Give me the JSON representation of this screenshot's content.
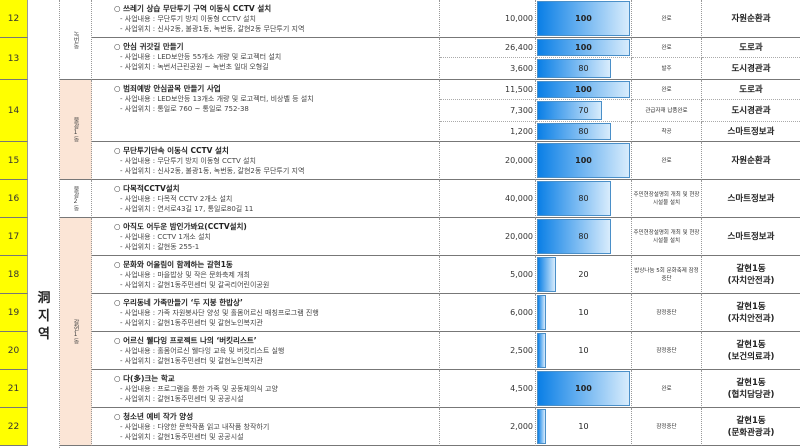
{
  "region_label": "洞 지역",
  "dongs": [
    {
      "label": "녹번동",
      "peach": false,
      "rows": [
        12,
        13
      ]
    },
    {
      "label": "불광1동",
      "peach": true,
      "rows": [
        14,
        15
      ]
    },
    {
      "label": "불광2동",
      "peach": false,
      "rows": [
        16
      ]
    },
    {
      "label": "갈현1동",
      "peach": true,
      "rows": [
        17,
        22
      ]
    }
  ],
  "rows": [
    {
      "num": "12",
      "title": "○ 쓰레기 상습 무단투기 구역 이동식 CCTV 설치",
      "content": "- 사업내용 : 무단투기 방지 이동형 CCTV 설치",
      "location": "- 사업위치 : 신사2동, 불광1동, 녹번동, 갈현2동 무단투기 지역",
      "dept": "자원순환과",
      "subs": [
        {
          "amount": "10,000",
          "progress": 100,
          "status": "완료"
        }
      ]
    },
    {
      "num": "13",
      "title": "○ 안심 귀갓길 만들기",
      "content": "- 사업내용 : LED보안등 55개소 개량 및 로고젝터 설치",
      "location": "- 사업위치 : 녹번서근린공원 ~ 녹번초 일대 오형길",
      "dept": "",
      "subs": [
        {
          "amount": "26,400",
          "progress": 100,
          "status": "완료",
          "dept": "도로과"
        },
        {
          "amount": "3,600",
          "progress": 80,
          "status": "발주",
          "dept": "도시경관과"
        }
      ]
    },
    {
      "num": "14",
      "title": "○ 범죄예방 안심골목 만들기 사업",
      "content": "- 사업내용 : LED보안등 13개소 개량 및 로고젝터, 비상벨 등 설치",
      "location": "- 사업위치 : 통일로 760 ~ 통일로 752-38",
      "dept": "",
      "subs": [
        {
          "amount": "11,500",
          "progress": 100,
          "status": "완료",
          "dept": "도로과"
        },
        {
          "amount": "7,300",
          "progress": 70,
          "status": "관급자재 납품완료",
          "dept": "도시경관과"
        },
        {
          "amount": "1,200",
          "progress": 80,
          "status": "착공",
          "dept": "스마트정보과"
        }
      ]
    },
    {
      "num": "15",
      "title": "○ 무단투기단속 이동식 CCTV 설치",
      "content": "- 사업내용 : 무단투기 방지 이동형 CCTV 설치",
      "location": "- 사업위치 : 신사2동, 불광1동, 녹번동, 갈현2동 무단투기 지역",
      "dept": "자원순환과",
      "subs": [
        {
          "amount": "20,000",
          "progress": 100,
          "status": "완료"
        }
      ]
    },
    {
      "num": "16",
      "title": "○ 다목적CCTV설치",
      "content": "- 사업내용 : 다목적 CCTV 2개소 설치",
      "location": "- 사업위치 : 연서로43길 17, 통일로80길 11",
      "dept": "스마트정보과",
      "subs": [
        {
          "amount": "40,000",
          "progress": 80,
          "status": "주민현장설명회 개최 및 현장시설물 설치"
        }
      ]
    },
    {
      "num": "17",
      "title": "○ 아직도 어두운 밤인가봐요(CCTV설치)",
      "content": "- 사업내용 : CCTV 1개소 설치",
      "location": "- 사업위치 : 갈현동 255-1",
      "dept": "스마트정보과",
      "subs": [
        {
          "amount": "20,000",
          "progress": 80,
          "status": "주민현장설명회 개최 및 현장시설물 설치"
        }
      ]
    },
    {
      "num": "18",
      "title": "○ 문화와 어울림이 함께하는 갈현1동",
      "content": "- 사업내용 : 마을밥상 및 작은 문화축제 개최",
      "location": "- 사업위치 : 갈현1동주민센터 및 갈곡리어린이공원",
      "dept": "갈현1동\n(자치안전과)",
      "subs": [
        {
          "amount": "5,000",
          "progress": 20,
          "status": "밥상나눔 5회 문화축제 잠정중단"
        }
      ]
    },
    {
      "num": "19",
      "title": "○ 우리동네 가족만들기 ‘두 지붕 한밥상’",
      "content": "- 사업내용 : 가족 자원봉사단 양성 및 홀몸어르신 매칭프로그램 진행",
      "location": "- 사업위치 : 갈현1동주민센터 및 갈현노인복지관",
      "dept": "갈현1동\n(자치안전과)",
      "subs": [
        {
          "amount": "6,000",
          "progress": 10,
          "status": "잠정중단"
        }
      ]
    },
    {
      "num": "20",
      "title": "○ 어르신 웰다잉 프로젝트 나의 ‘버킷리스트’",
      "content": "- 사업내용 : 홀몸어르신 웰다잉 교육 및 버킷리스트 실행",
      "location": "- 사업위치 : 갈현1동주민센터 및 갈현노인복지관",
      "dept": "갈현1동\n(보건의료과)",
      "subs": [
        {
          "amount": "2,500",
          "progress": 10,
          "status": "잠정중단"
        }
      ]
    },
    {
      "num": "21",
      "title": "○ 다(多)크는 학교",
      "content": "- 사업내용 : 프로그램을 통한 가족 및 공동체의식 고양",
      "location": "- 사업위치 : 갈현1동주민센터 및 공공시설",
      "dept": "갈현1동\n(협치담당관)",
      "subs": [
        {
          "amount": "4,500",
          "progress": 100,
          "status": "완료"
        }
      ]
    },
    {
      "num": "22",
      "title": "○ 청소년 예비 작가 양성",
      "content": "- 사업내용 : 다양한 문학작품 읽고 내작품 창작하기",
      "location": "- 사업위치 : 갈현1동주민센터 및 공공시설",
      "dept": "갈현1동\n(문화관광과)",
      "subs": [
        {
          "amount": "2,000",
          "progress": 10,
          "status": "잠정중단"
        }
      ]
    }
  ]
}
